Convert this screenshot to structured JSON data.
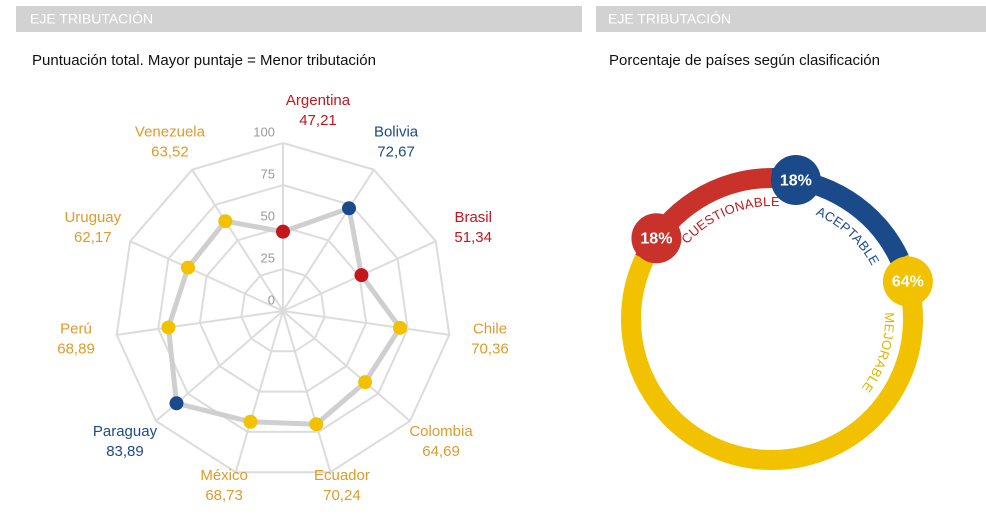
{
  "chart_data": [
    {
      "type": "radar",
      "header": "EJE TRIBUTACIÓN",
      "title": "Puntuación total. Mayor puntaje = Menor tributación",
      "categories": [
        "Argentina",
        "Bolivia",
        "Brasil",
        "Chile",
        "Colombia",
        "Ecuador",
        "México",
        "Paraguay",
        "Perú",
        "Uruguay",
        "Venezuela"
      ],
      "values": [
        47.21,
        72.67,
        51.34,
        70.36,
        64.69,
        70.24,
        68.73,
        83.89,
        68.89,
        62.17,
        63.52
      ],
      "value_labels": [
        "47,21",
        "72,67",
        "51,34",
        "70,36",
        "64,69",
        "70,24",
        "68,73",
        "83,89",
        "68,89",
        "62,17",
        "63,52"
      ],
      "colors": [
        "#c4161c",
        "#1b4a8a",
        "#c4161c",
        "#f2c200",
        "#f2c200",
        "#f2c200",
        "#f2c200",
        "#1b4a8a",
        "#f2c200",
        "#f2c200",
        "#f2c200"
      ],
      "label_colors": [
        "#c4161c",
        "#1b4a8a",
        "#c4161c",
        "#e09a2a",
        "#e09a2a",
        "#e09a2a",
        "#e09a2a",
        "#1b4a8a",
        "#e09a2a",
        "#e09a2a",
        "#e09a2a"
      ],
      "rlim": [
        0,
        100
      ],
      "rticks": [
        0,
        25,
        50,
        75,
        100
      ]
    },
    {
      "type": "donut",
      "header": "EJE TRIBUTACIÓN",
      "title": "Porcentaje de países según clasificación",
      "categories": [
        "ACEPTABLE",
        "MEJORABLE",
        "CUESTIONABLE"
      ],
      "values": [
        18,
        64,
        18
      ],
      "value_labels": [
        "18%",
        "64%",
        "18%"
      ],
      "colors": [
        "#1b4a8a",
        "#f2c200",
        "#c8322a"
      ],
      "label_colors": [
        "#1b4a8a",
        "#e0b400",
        "#c4161c"
      ]
    }
  ]
}
